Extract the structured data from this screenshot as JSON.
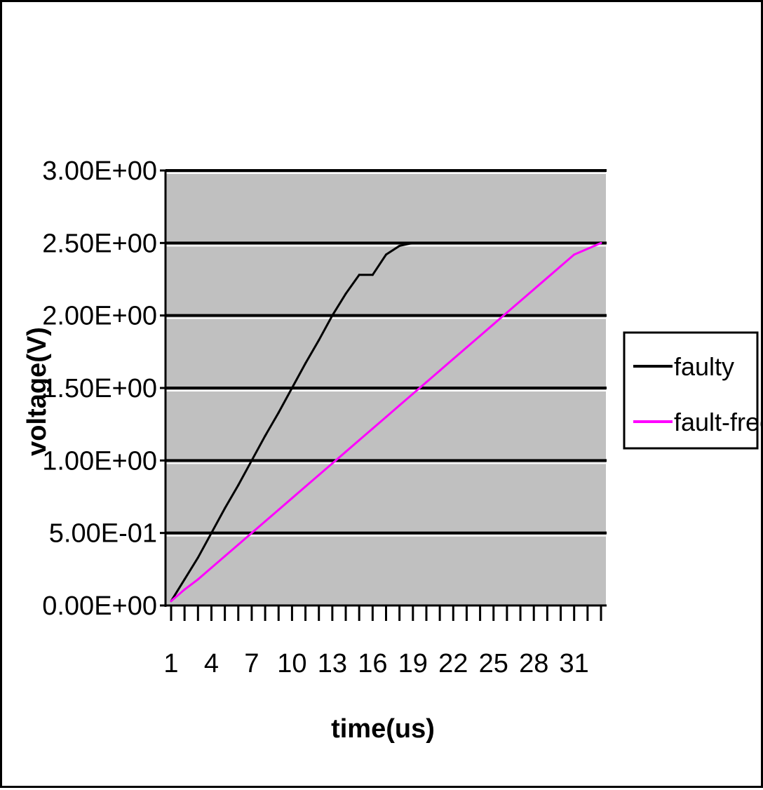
{
  "chart_data": {
    "type": "line",
    "title": "",
    "xlabel": "time(us)",
    "ylabel": "voltage(V)",
    "ylim": [
      0,
      3
    ],
    "x": [
      1,
      2,
      3,
      4,
      5,
      6,
      7,
      8,
      9,
      10,
      11,
      12,
      13,
      14,
      15,
      16,
      17,
      18,
      19,
      20,
      21,
      22,
      23,
      24,
      25,
      26,
      27,
      28,
      29,
      30,
      31,
      32,
      33
    ],
    "x_tick_labels": [
      "1",
      "4",
      "7",
      "10",
      "13",
      "16",
      "19",
      "22",
      "25",
      "28",
      "31"
    ],
    "y_tick_labels": [
      "0.00E+00",
      "5.00E-01",
      "1.00E+00",
      "1.50E+00",
      "2.00E+00",
      "2.50E+00",
      "3.00E+00"
    ],
    "y_tick_values": [
      0,
      0.5,
      1.0,
      1.5,
      2.0,
      2.5,
      3.0
    ],
    "grid": true,
    "background": "#c0c0c0",
    "legend_position": "right",
    "series": [
      {
        "name": "faulty",
        "color": "#000000",
        "values": [
          0.03,
          0.18,
          0.33,
          0.5,
          0.67,
          0.83,
          1.0,
          1.17,
          1.33,
          1.5,
          1.67,
          1.83,
          2.0,
          2.15,
          2.28,
          2.28,
          2.42,
          2.48,
          2.5,
          2.5,
          2.5,
          2.5,
          2.5,
          2.5,
          2.5,
          2.5,
          2.5,
          2.5,
          2.5,
          2.5,
          2.5,
          2.5,
          2.5
        ]
      },
      {
        "name": "fault-free",
        "color": "#ff00ff",
        "values": [
          0.03,
          0.11,
          0.18,
          0.26,
          0.34,
          0.42,
          0.5,
          0.58,
          0.66,
          0.74,
          0.82,
          0.9,
          0.98,
          1.06,
          1.14,
          1.22,
          1.3,
          1.38,
          1.46,
          1.54,
          1.62,
          1.7,
          1.78,
          1.86,
          1.94,
          2.02,
          2.1,
          2.18,
          2.26,
          2.34,
          2.42,
          2.46,
          2.5
        ]
      }
    ]
  }
}
